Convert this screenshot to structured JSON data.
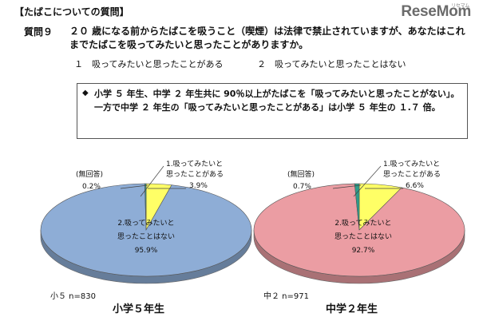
{
  "header": {
    "section_title": "【たばこについての質問】",
    "logo_text": "ReseMom",
    "logo_sup": "リセマム"
  },
  "question": {
    "label": "質問９",
    "text": "２０ 歳になる前からたばこを吸うこと（喫煙）は法律で禁止されていますが、あなたはこれまでたばこを吸ってみたいと思ったことがありますか。",
    "option1": "１　吸ってみたいと思ったことがある",
    "option2": "２　吸ってみたいと思ったことはない"
  },
  "finding": {
    "marker": "◆",
    "text": "小学 ５ 年生、中学 ２ 年生共に 90％以上がたばこを「吸ってみたいと思ったことがない」。一方で中学 ２ 年生の「吸ってみたいと思ったことがある」は小学 ５ 年生の １.７ 倍。"
  },
  "chart_data": [
    {
      "type": "pie",
      "title": "小学５年生",
      "n_label": "小５ n=830",
      "categories": [
        "1.吸ってみたいと思ったことがある",
        "2.吸ってみたいと思ったことはない",
        "(無回答)"
      ],
      "values": [
        3.9,
        95.9,
        0.2
      ],
      "value_labels": [
        "3.9%",
        "95.9%",
        "0.2%"
      ],
      "colors": [
        "#ffff66",
        "#8eadd6",
        "#2e9c8a"
      ]
    },
    {
      "type": "pie",
      "title": "中学２年生",
      "n_label": "中２ n=971",
      "categories": [
        "1.吸ってみたいと思ったことがある",
        "2.吸ってみたいと思ったことはない",
        "(無回答)"
      ],
      "values": [
        6.6,
        92.7,
        0.7
      ],
      "value_labels": [
        "6.6%",
        "92.7%",
        "0.7%"
      ],
      "colors": [
        "#ffff66",
        "#eb9da3",
        "#2e9c8a"
      ]
    }
  ],
  "labels": {
    "yes_line1": "1.吸ってみたいと",
    "yes_line2": "思ったことがある",
    "no_line1": "2.吸ってみたいと",
    "no_line2": "思ったことはない",
    "noanswer": "(無回答)"
  }
}
